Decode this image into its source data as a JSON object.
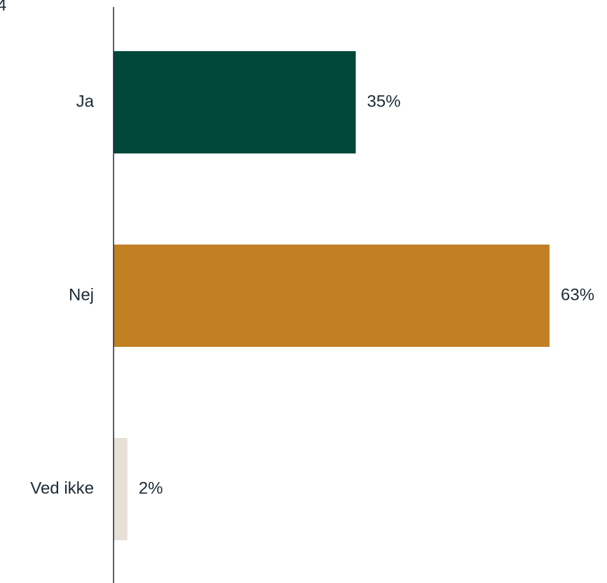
{
  "corner_text": "4",
  "chart_data": {
    "type": "bar",
    "orientation": "horizontal",
    "categories": [
      "Ja",
      "Nej",
      "Ved ikke"
    ],
    "values": [
      35,
      63,
      2
    ],
    "value_labels": [
      "35%",
      "63%",
      "2%"
    ],
    "unit": "%",
    "xlim": [
      0,
      63
    ],
    "colors": [
      "#00473a",
      "#c28024",
      "#e6e0d6"
    ],
    "axis_color": "#1c2b36",
    "text_color": "#1c2b36",
    "grid": false,
    "legend": "none"
  }
}
